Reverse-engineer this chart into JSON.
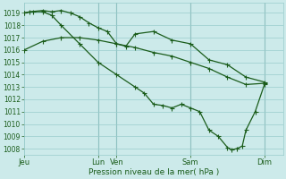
{
  "title": "Pression niveau de la mer( hPa )",
  "bg_color": "#cceaea",
  "grid_color": "#99cccc",
  "line_color": "#1a5c1a",
  "ylim": [
    1007.5,
    1019.8
  ],
  "yticks": [
    1008,
    1009,
    1010,
    1011,
    1012,
    1013,
    1014,
    1015,
    1016,
    1017,
    1018,
    1019
  ],
  "xtick_labels": [
    "Jeu",
    "Lun",
    "Ven",
    "Sam",
    "Dim"
  ],
  "xtick_positions": [
    0,
    4,
    5,
    9,
    13
  ],
  "vline_positions": [
    4,
    5,
    9,
    13
  ],
  "xmin": 0,
  "xmax": 14,
  "line1_x": [
    0,
    1,
    2,
    3,
    4,
    5,
    6,
    7,
    8,
    9,
    10,
    11,
    12,
    13
  ],
  "line1_y": [
    1016.0,
    1016.7,
    1017.0,
    1017.0,
    1016.8,
    1016.5,
    1016.2,
    1015.8,
    1015.5,
    1015.0,
    1014.5,
    1013.8,
    1013.2,
    1013.3
  ],
  "line2_x": [
    0,
    0.3,
    1,
    1.5,
    2,
    2.5,
    3,
    3.5,
    4,
    4.5,
    5,
    5.5,
    6,
    7,
    8,
    9,
    10,
    11,
    12,
    13
  ],
  "line2_y": [
    1019.0,
    1019.1,
    1019.2,
    1019.1,
    1019.2,
    1019.0,
    1018.7,
    1018.2,
    1017.8,
    1017.5,
    1016.5,
    1016.3,
    1017.3,
    1017.5,
    1016.8,
    1016.5,
    1015.2,
    1014.8,
    1013.8,
    1013.4
  ],
  "line3_x": [
    0,
    0.5,
    1,
    1.5,
    2,
    3,
    4,
    5,
    6,
    6.5,
    7,
    7.5,
    8,
    8.5,
    9,
    9.5,
    10,
    10.5,
    11,
    11.2,
    11.5,
    11.8,
    12,
    12.5,
    13
  ],
  "line3_y": [
    1019.0,
    1019.1,
    1019.1,
    1018.8,
    1018.0,
    1016.5,
    1015.0,
    1014.0,
    1013.0,
    1012.5,
    1011.6,
    1011.5,
    1011.3,
    1011.6,
    1011.3,
    1011.0,
    1009.5,
    1009.0,
    1008.1,
    1007.9,
    1008.0,
    1008.2,
    1009.5,
    1011.0,
    1013.2
  ]
}
